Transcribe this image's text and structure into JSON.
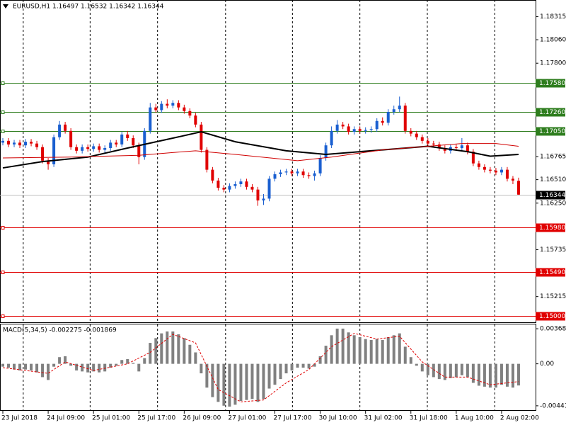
{
  "chart_data": [
    {
      "type": "candlestick",
      "title": "EURUSD,H1  1.16497 1.16532 1.16342 1.16344",
      "up_color": "#1a5fd0",
      "down_color": "#e00000",
      "ylim": [
        1.1493,
        1.185
      ],
      "yticks": [
        {
          "value": 1.18315,
          "label": "1.18315"
        },
        {
          "value": 1.1806,
          "label": "1.18060"
        },
        {
          "value": 1.178,
          "label": "1.17800"
        },
        {
          "value": 1.16765,
          "label": "1.16765"
        },
        {
          "value": 1.1651,
          "label": "1.16510"
        },
        {
          "value": 1.1625,
          "label": "1.16250"
        },
        {
          "value": 1.15735,
          "label": "1.15735"
        },
        {
          "value": 1.15215,
          "label": "1.15215"
        }
      ],
      "xlim": [
        -0.5,
        94
      ],
      "xticks": [
        {
          "value": 0,
          "label": "23 Jul 2018"
        },
        {
          "value": 8,
          "label": "24 Jul 09:00"
        },
        {
          "value": 16,
          "label": "25 Jul 01:00"
        },
        {
          "value": 24,
          "label": "25 Jul 17:00"
        },
        {
          "value": 32,
          "label": "26 Jul 09:00"
        },
        {
          "value": 40,
          "label": "27 Jul 01:00"
        },
        {
          "value": 48,
          "label": "27 Jul 17:00"
        },
        {
          "value": 56,
          "label": "30 Jul 10:00"
        },
        {
          "value": 64,
          "label": "31 Jul 02:00"
        },
        {
          "value": 72,
          "label": "31 Jul 18:00"
        },
        {
          "value": 80,
          "label": "1 Aug 10:00"
        },
        {
          "value": 88,
          "label": "2 Aug 02:00"
        }
      ],
      "xgrid": [
        3.6,
        15.4,
        27.3,
        39.3,
        51.1,
        63,
        74.9,
        86.8
      ],
      "levels": [
        {
          "value": 1.1758,
          "label": "1.17580",
          "color": "#2e7d1e"
        },
        {
          "value": 1.1726,
          "label": "1.17260",
          "color": "#2e7d1e"
        },
        {
          "value": 1.1705,
          "label": "1.17050",
          "color": "#2e7d1e"
        },
        {
          "value": 1.1598,
          "label": "1.15980",
          "color": "#e00000"
        },
        {
          "value": 1.1549,
          "label": "1.15490",
          "color": "#e00000"
        },
        {
          "value": 1.15,
          "label": "1.15000",
          "color": "#e00000"
        }
      ],
      "last_price": {
        "value": 1.16344,
        "label": "1.16344"
      },
      "open": [
        1.1692,
        1.1694,
        1.169,
        1.1692,
        1.1689,
        1.1693,
        1.1691,
        1.1687,
        1.1672,
        1.1668,
        1.1698,
        1.1712,
        1.1705,
        1.1687,
        1.1683,
        1.1687,
        1.1685,
        1.1688,
        1.1684,
        1.1686,
        1.1692,
        1.169,
        1.1701,
        1.1697,
        1.1689,
        1.1676,
        1.1705,
        1.1731,
        1.1728,
        1.1735,
        1.1733,
        1.1736,
        1.1731,
        1.1727,
        1.1722,
        1.1712,
        1.1684,
        1.1662,
        1.165,
        1.1642,
        1.164,
        1.1644,
        1.1646,
        1.1649,
        1.1643,
        1.164,
        1.1628,
        1.163,
        1.1652,
        1.1657,
        1.1659,
        1.166,
        1.1658,
        1.166,
        1.1656,
        1.1655,
        1.1658,
        1.1675,
        1.1689,
        1.1705,
        1.1712,
        1.171,
        1.1704,
        1.1707,
        1.1705,
        1.1706,
        1.1707,
        1.1716,
        1.1714,
        1.1726,
        1.1729,
        1.1733,
        1.1705,
        1.1702,
        1.1698,
        1.1694,
        1.1691,
        1.169,
        1.1686,
        1.1683,
        1.1687,
        1.1686,
        1.1689,
        1.1682,
        1.1669,
        1.1665,
        1.1662,
        1.1661,
        1.1659,
        1.1662,
        1.1652,
        1.16497
      ],
      "high": [
        1.1697,
        1.1697,
        1.1695,
        1.1695,
        1.1696,
        1.1696,
        1.1694,
        1.169,
        1.1675,
        1.1701,
        1.1716,
        1.1715,
        1.1708,
        1.169,
        1.169,
        1.169,
        1.1691,
        1.1691,
        1.1689,
        1.1695,
        1.1695,
        1.1704,
        1.1705,
        1.17,
        1.1692,
        1.1708,
        1.1736,
        1.1735,
        1.1738,
        1.174,
        1.1739,
        1.1739,
        1.1734,
        1.173,
        1.1725,
        1.1715,
        1.1687,
        1.1665,
        1.1653,
        1.1645,
        1.1647,
        1.1649,
        1.1652,
        1.1652,
        1.1646,
        1.1643,
        1.1635,
        1.1655,
        1.166,
        1.1662,
        1.1663,
        1.1663,
        1.1663,
        1.1663,
        1.1659,
        1.1661,
        1.1678,
        1.1692,
        1.171,
        1.1717,
        1.1715,
        1.1713,
        1.171,
        1.171,
        1.1709,
        1.171,
        1.1719,
        1.172,
        1.1729,
        1.1733,
        1.1743,
        1.1736,
        1.1708,
        1.1705,
        1.1701,
        1.1697,
        1.1694,
        1.1693,
        1.1689,
        1.169,
        1.169,
        1.1697,
        1.1692,
        1.1685,
        1.1672,
        1.1668,
        1.1665,
        1.1664,
        1.1665,
        1.1665,
        1.1655,
        1.16532
      ],
      "low": [
        1.1689,
        1.1687,
        1.1687,
        1.1686,
        1.1686,
        1.1688,
        1.1684,
        1.1669,
        1.1662,
        1.1665,
        1.1695,
        1.1702,
        1.1684,
        1.168,
        1.168,
        1.1682,
        1.1682,
        1.1681,
        1.1681,
        1.1683,
        1.1687,
        1.1687,
        1.1694,
        1.1686,
        1.1668,
        1.1673,
        1.1702,
        1.1725,
        1.1725,
        1.173,
        1.173,
        1.1728,
        1.1724,
        1.1719,
        1.1709,
        1.1681,
        1.1659,
        1.1647,
        1.1639,
        1.1637,
        1.1637,
        1.1641,
        1.1643,
        1.164,
        1.1637,
        1.1622,
        1.1623,
        1.1627,
        1.1649,
        1.1654,
        1.1656,
        1.1655,
        1.1655,
        1.1653,
        1.1652,
        1.165,
        1.1655,
        1.1672,
        1.1686,
        1.1702,
        1.1707,
        1.1701,
        1.1701,
        1.1702,
        1.1702,
        1.1703,
        1.1704,
        1.1711,
        1.1711,
        1.1723,
        1.1726,
        1.1702,
        1.1699,
        1.1695,
        1.1691,
        1.1688,
        1.1687,
        1.1683,
        1.168,
        1.168,
        1.1683,
        1.1683,
        1.1679,
        1.1666,
        1.1662,
        1.1659,
        1.1658,
        1.1656,
        1.1656,
        1.1649,
        1.1646,
        1.16342
      ],
      "close": [
        1.1694,
        1.169,
        1.1692,
        1.1689,
        1.1693,
        1.1691,
        1.1687,
        1.1672,
        1.1668,
        1.1698,
        1.1712,
        1.1705,
        1.1687,
        1.1683,
        1.1687,
        1.1685,
        1.1688,
        1.1684,
        1.1686,
        1.1692,
        1.169,
        1.1701,
        1.1697,
        1.1689,
        1.1676,
        1.1705,
        1.1731,
        1.1728,
        1.1735,
        1.1733,
        1.1736,
        1.1731,
        1.1727,
        1.1722,
        1.1712,
        1.1684,
        1.1662,
        1.165,
        1.1642,
        1.164,
        1.1644,
        1.1646,
        1.1649,
        1.1643,
        1.164,
        1.1628,
        1.163,
        1.1652,
        1.1657,
        1.1659,
        1.166,
        1.1658,
        1.166,
        1.1656,
        1.1655,
        1.1658,
        1.1675,
        1.1689,
        1.1705,
        1.1712,
        1.171,
        1.1704,
        1.1707,
        1.1705,
        1.1706,
        1.1707,
        1.1716,
        1.1714,
        1.1726,
        1.1729,
        1.1733,
        1.1705,
        1.1702,
        1.1698,
        1.1694,
        1.1691,
        1.169,
        1.1686,
        1.1683,
        1.1687,
        1.1686,
        1.1689,
        1.1682,
        1.1669,
        1.1665,
        1.1662,
        1.1661,
        1.1659,
        1.1662,
        1.1652,
        1.165,
        1.16344
      ],
      "series": [
        {
          "color": "#000000",
          "x": [
            0,
            7,
            15,
            22,
            30,
            35,
            41,
            50,
            57,
            67,
            75,
            82,
            86,
            91
          ],
          "values": [
            1.1664,
            1.1671,
            1.1676,
            1.1686,
            1.1697,
            1.1704,
            1.1693,
            1.1683,
            1.1679,
            1.1684,
            1.1688,
            1.1682,
            1.1677,
            1.1679
          ]
        },
        {
          "color": "#d00000",
          "x": [
            0,
            12,
            24,
            34,
            41,
            52,
            58,
            67,
            75,
            81,
            87,
            91
          ],
          "values": [
            1.1675,
            1.1676,
            1.1678,
            1.1683,
            1.1679,
            1.1672,
            1.1676,
            1.1684,
            1.1688,
            1.1691,
            1.1691,
            1.1688
          ]
        }
      ]
    },
    {
      "type": "macd",
      "title": "MACD(5,34,5) -0.002275 -0.001869",
      "color": "#808080",
      "signal_color": "#e00000",
      "ylim": [
        -0.00494,
        0.00414
      ],
      "yticks": [
        0.003685,
        {
          "value": 0,
          "label": "0.00"
        },
        -0.00441
      ],
      "values": [
        -0.0003,
        -0.0004,
        -0.0006,
        -0.0007,
        -0.0006,
        -0.0007,
        -0.0009,
        -0.0014,
        -0.0017,
        -0.0003,
        0.0007,
        0.0008,
        -0.0002,
        -0.0007,
        -0.0008,
        -0.0009,
        -0.0008,
        -0.0009,
        -0.0008,
        -0.0004,
        -0.0002,
        0.0004,
        0.0005,
        0.0001,
        -0.0008,
        0.0006,
        0.0022,
        0.0027,
        0.0032,
        0.0034,
        0.0034,
        0.0031,
        0.0027,
        0.002,
        0.0012,
        -0.001,
        -0.0025,
        -0.0035,
        -0.004,
        -0.0044,
        -0.0045,
        -0.0043,
        -0.0039,
        -0.0038,
        -0.0037,
        -0.004,
        -0.0037,
        -0.0026,
        -0.0022,
        -0.0016,
        -0.001,
        -0.0007,
        -0.0004,
        -0.0004,
        -0.0005,
        -0.0003,
        0.0008,
        0.0019,
        0.003,
        0.0037,
        0.0037,
        0.0033,
        0.003,
        0.0028,
        0.0026,
        0.0025,
        0.0026,
        0.0025,
        0.0028,
        0.003,
        0.0032,
        0.0018,
        0.0007,
        -0.0002,
        -0.0008,
        -0.0012,
        -0.0014,
        -0.0016,
        -0.0017,
        -0.0015,
        -0.0014,
        -0.0012,
        -0.0014,
        -0.002,
        -0.0023,
        -0.0024,
        -0.0025,
        -0.0025,
        -0.0022,
        -0.0024,
        -0.0025,
        -0.002275
      ],
      "signal": {
        "x": [
          0,
          8,
          11,
          16,
          22,
          26,
          30,
          34,
          38,
          42,
          46,
          50,
          54,
          58,
          62,
          66,
          70,
          74,
          78,
          82,
          86,
          91
        ],
        "values": [
          -0.0004,
          -0.001,
          0.0002,
          -0.0007,
          0,
          0.0012,
          0.0031,
          0.0022,
          -0.0027,
          -0.004,
          -0.0038,
          -0.002,
          -0.0006,
          0.0018,
          0.0032,
          0.0026,
          0.0029,
          0.0002,
          -0.0014,
          -0.0014,
          -0.0022,
          -0.001869
        ]
      }
    }
  ]
}
